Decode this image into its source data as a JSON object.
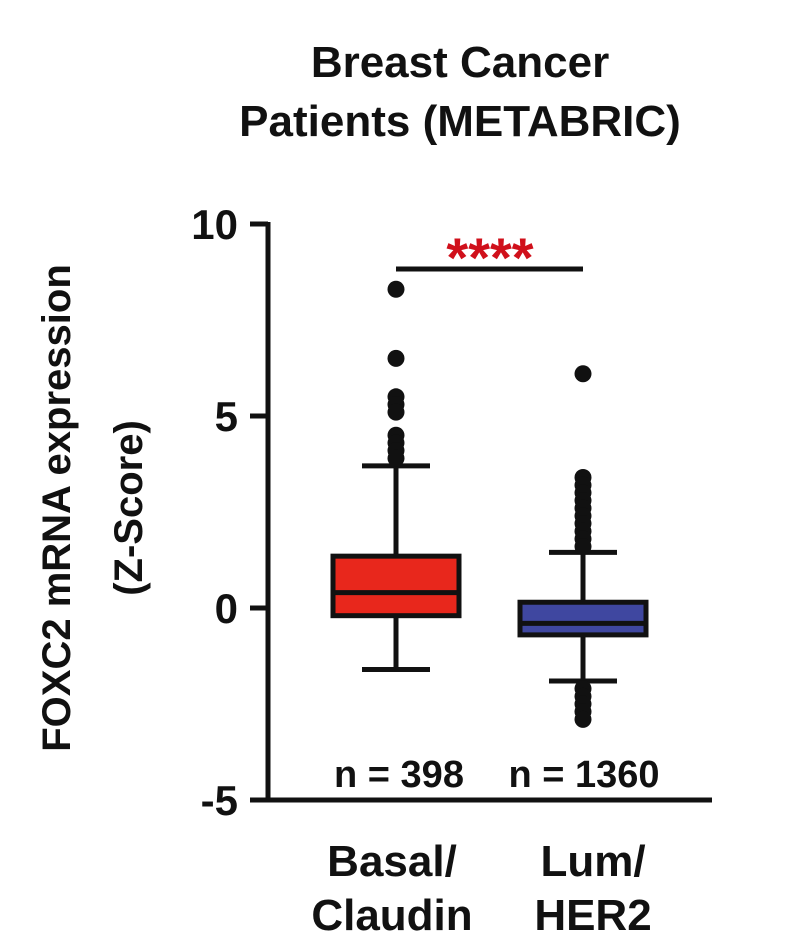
{
  "chart_data": {
    "type": "box",
    "title": [
      "Breast Cancer",
      "Patients (METABRIC)"
    ],
    "ylabel": [
      "FOXC2 mRNA expression",
      "(Z-Score)"
    ],
    "ylim": [
      -5,
      10
    ],
    "yticks": [
      10,
      5,
      0,
      -5
    ],
    "categories": [
      [
        "Basal/",
        "Claudin"
      ],
      [
        "Lum/",
        "HER2"
      ]
    ],
    "significance": "****",
    "colors": {
      "box1": "#e8271c",
      "box2": "#3f47a0",
      "significance": "#d0101b"
    },
    "boxes": [
      {
        "name": "Basal/Claudin",
        "n_label": "n = 398",
        "whisker_low": -1.6,
        "q1": -0.2,
        "median": 0.4,
        "q3": 1.35,
        "whisker_high": 3.7,
        "outliers": [
          8.3,
          6.5,
          5.5,
          5.3,
          5.1,
          4.5,
          4.3,
          4.1,
          3.9
        ]
      },
      {
        "name": "Lum/HER2",
        "n_label": "n = 1360",
        "whisker_low": -1.9,
        "q1": -0.7,
        "median": -0.4,
        "q3": 0.15,
        "whisker_high": 1.45,
        "outliers": [
          6.1,
          3.4,
          3.2,
          3.0,
          2.8,
          2.6,
          2.4,
          2.2,
          2.0,
          1.8,
          1.6,
          -2.1,
          -2.3,
          -2.5,
          -2.7,
          -2.9
        ]
      }
    ]
  }
}
